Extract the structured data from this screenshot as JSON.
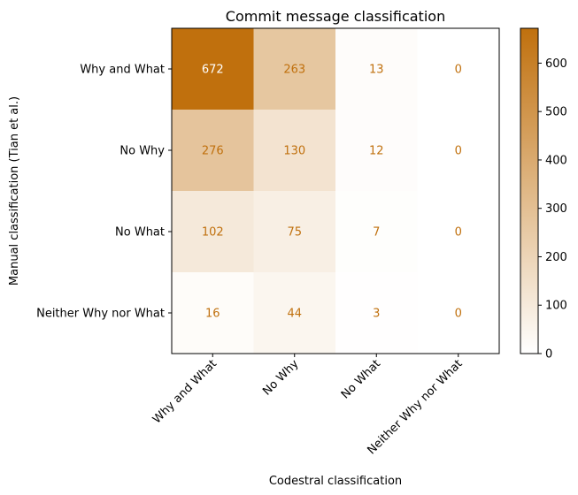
{
  "chart_data": {
    "type": "heatmap",
    "title": "Commit message classification",
    "xlabel": "Codestral classification",
    "ylabel": "Manual classification (Tian et al.)",
    "x_categories": [
      "Why and What",
      "No Why",
      "No What",
      "Neither Why nor What"
    ],
    "y_categories": [
      "Why and What",
      "No Why",
      "No What",
      "Neither Why nor What"
    ],
    "values": [
      [
        672,
        263,
        13,
        0
      ],
      [
        276,
        130,
        12,
        0
      ],
      [
        102,
        75,
        7,
        0
      ],
      [
        16,
        44,
        3,
        0
      ]
    ],
    "colorbar": {
      "range": [
        0,
        672
      ],
      "ticks": [
        0,
        100,
        200,
        300,
        400,
        500,
        600
      ],
      "color_low": "#ffffff",
      "color_high": "#c0700d"
    },
    "cell_text_color_dark": "#ffffff",
    "cell_text_color_light": "#c0700d"
  }
}
